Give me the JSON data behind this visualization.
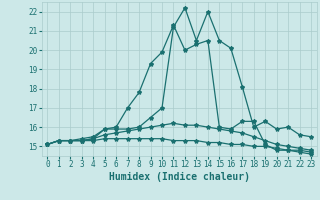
{
  "background_color": "#cce8e8",
  "grid_color": "#aacccc",
  "line_color": "#1a7070",
  "x_values": [
    0,
    1,
    2,
    3,
    4,
    5,
    6,
    7,
    8,
    9,
    10,
    11,
    12,
    13,
    14,
    15,
    16,
    17,
    18,
    19,
    20,
    21,
    22,
    23
  ],
  "series1": [
    15.1,
    15.3,
    15.3,
    15.3,
    15.4,
    15.9,
    16.0,
    17.0,
    17.8,
    19.3,
    19.9,
    21.3,
    20.0,
    20.3,
    20.5,
    16.0,
    15.9,
    16.3,
    16.3,
    15.1,
    14.8,
    14.8,
    14.7,
    14.6
  ],
  "series2": [
    15.1,
    15.3,
    15.3,
    15.3,
    15.4,
    15.6,
    15.7,
    15.8,
    15.9,
    16.0,
    16.1,
    16.2,
    16.1,
    16.1,
    16.0,
    15.9,
    15.8,
    15.7,
    15.5,
    15.3,
    15.1,
    15.0,
    14.9,
    14.8
  ],
  "series3": [
    15.1,
    15.3,
    15.3,
    15.3,
    15.3,
    15.4,
    15.4,
    15.4,
    15.4,
    15.4,
    15.4,
    15.3,
    15.3,
    15.3,
    15.2,
    15.2,
    15.1,
    15.1,
    15.0,
    15.0,
    14.9,
    14.8,
    14.8,
    14.7
  ],
  "series4": [
    15.1,
    15.3,
    15.3,
    15.4,
    15.5,
    15.9,
    15.9,
    15.9,
    16.0,
    16.5,
    17.0,
    21.2,
    22.2,
    20.5,
    22.0,
    20.5,
    20.1,
    18.1,
    16.0,
    16.3,
    15.9,
    16.0,
    15.6,
    15.5
  ],
  "xlabel": "Humidex (Indice chaleur)",
  "ylim": [
    14.5,
    22.5
  ],
  "xlim": [
    -0.5,
    23.5
  ],
  "yticks": [
    15,
    16,
    17,
    18,
    19,
    20,
    21,
    22
  ],
  "xticks": [
    0,
    1,
    2,
    3,
    4,
    5,
    6,
    7,
    8,
    9,
    10,
    11,
    12,
    13,
    14,
    15,
    16,
    17,
    18,
    19,
    20,
    21,
    22,
    23
  ],
  "marker": "*",
  "marker_size": 3.0,
  "line_width": 0.9,
  "xlabel_fontsize": 7.0,
  "tick_fontsize": 5.5
}
